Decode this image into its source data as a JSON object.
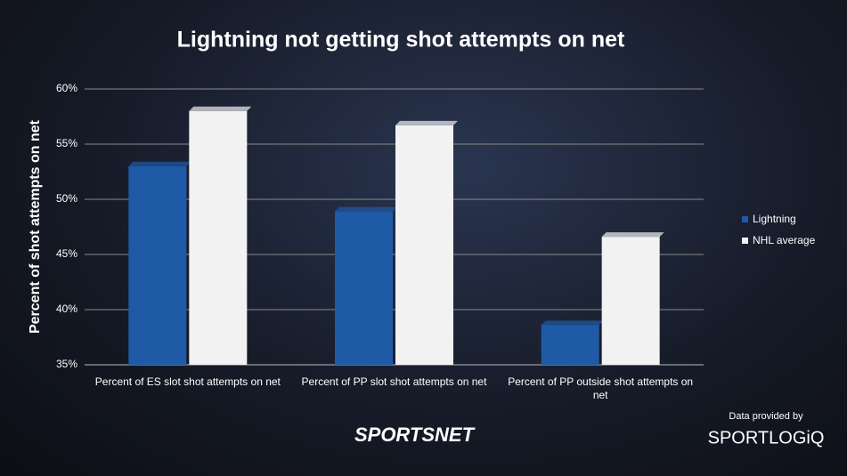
{
  "chart_data": {
    "type": "bar",
    "title": "Lightning not getting shot attempts on net",
    "y_label": "Percent of shot attempts on net",
    "categories": [
      "Percent of ES slot shot attempts on net",
      "Percent of PP slot shot attempts on net",
      "Percent of PP outside shot attempts on net"
    ],
    "series": [
      {
        "name": "Lightning",
        "color": "#1f5aa6",
        "values": [
          53.0,
          48.9,
          38.6
        ]
      },
      {
        "name": "NHL average",
        "color": "#f2f2f2",
        "values": [
          58.0,
          56.7,
          46.6
        ]
      }
    ],
    "ylim": [
      35,
      60
    ],
    "yticks": [
      {
        "value": 35,
        "label": "35%"
      },
      {
        "value": 40,
        "label": "40%"
      },
      {
        "value": 45,
        "label": "45%"
      },
      {
        "value": 50,
        "label": "50%"
      },
      {
        "value": 55,
        "label": "55%"
      },
      {
        "value": 60,
        "label": "60%"
      }
    ],
    "grid": true,
    "legend": "right",
    "annotations": [
      "SPORTSNET",
      "Data provided by",
      "SPORTLOGiQ"
    ]
  }
}
